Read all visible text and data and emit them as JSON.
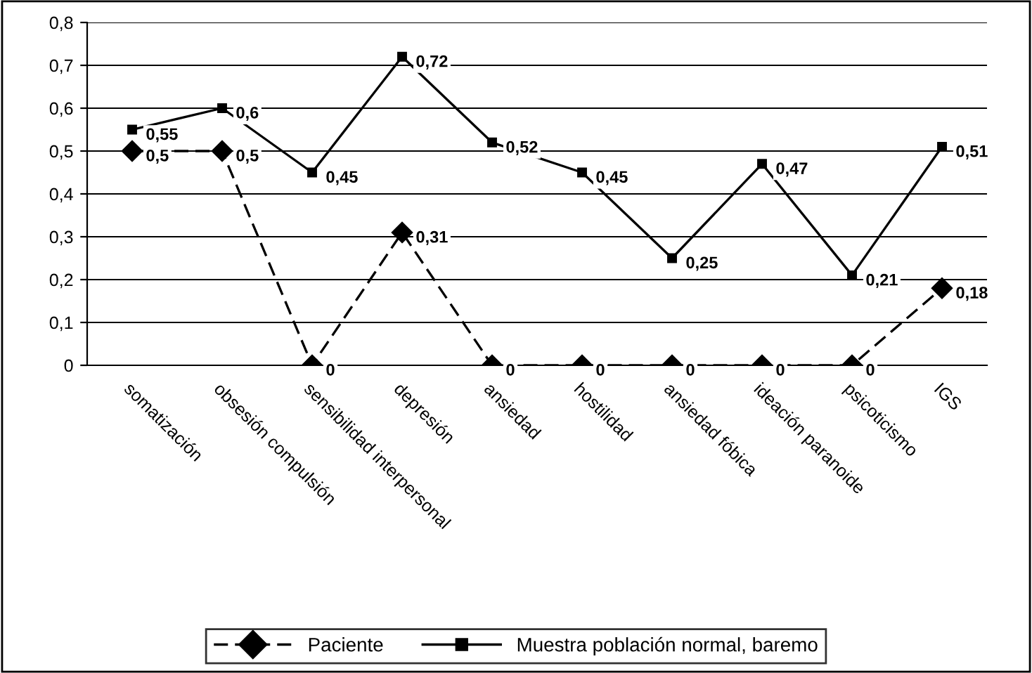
{
  "chart_data": {
    "type": "line",
    "categories": [
      "somatización",
      "obsesión compulsión",
      "sensibilidad interpersonal",
      "depresión",
      "ansiedad",
      "hostilidad",
      "ansiedad fóbica",
      "ideación paranoide",
      "psicoticismo",
      "IGS"
    ],
    "series": [
      {
        "name": "Paciente",
        "color": "#000000",
        "marker": "diamond",
        "line_style": "dashed",
        "values": [
          0.5,
          0.5,
          0,
          0.31,
          0,
          0,
          0,
          0,
          0,
          0.18
        ],
        "value_labels": [
          "0,5",
          "0,5",
          "0",
          "0,31",
          "0",
          "0",
          "0",
          "0",
          "0",
          "0,18"
        ]
      },
      {
        "name": "Muestra población normal, baremo",
        "color": "#000000",
        "marker": "square",
        "line_style": "solid",
        "values": [
          0.55,
          0.6,
          0.45,
          0.72,
          0.52,
          0.45,
          0.25,
          0.47,
          0.21,
          0.51
        ],
        "value_labels": [
          "0,55",
          "0,6",
          "0,45",
          "0,72",
          "0,52",
          "0,45",
          "0,25",
          "0,47",
          "0,21",
          "0,51"
        ]
      }
    ],
    "ylim": [
      0,
      0.8
    ],
    "yticks": [
      {
        "value": 0,
        "label": "0"
      },
      {
        "value": 0.1,
        "label": "0,1"
      },
      {
        "value": 0.2,
        "label": "0,2"
      },
      {
        "value": 0.3,
        "label": "0,3"
      },
      {
        "value": 0.4,
        "label": "0,4"
      },
      {
        "value": 0.5,
        "label": "0,5"
      },
      {
        "value": 0.6,
        "label": "0,6"
      },
      {
        "value": 0.7,
        "label": "0,7"
      },
      {
        "value": 0.8,
        "label": "0,8"
      }
    ],
    "grid": "y",
    "legend": "bottom"
  }
}
